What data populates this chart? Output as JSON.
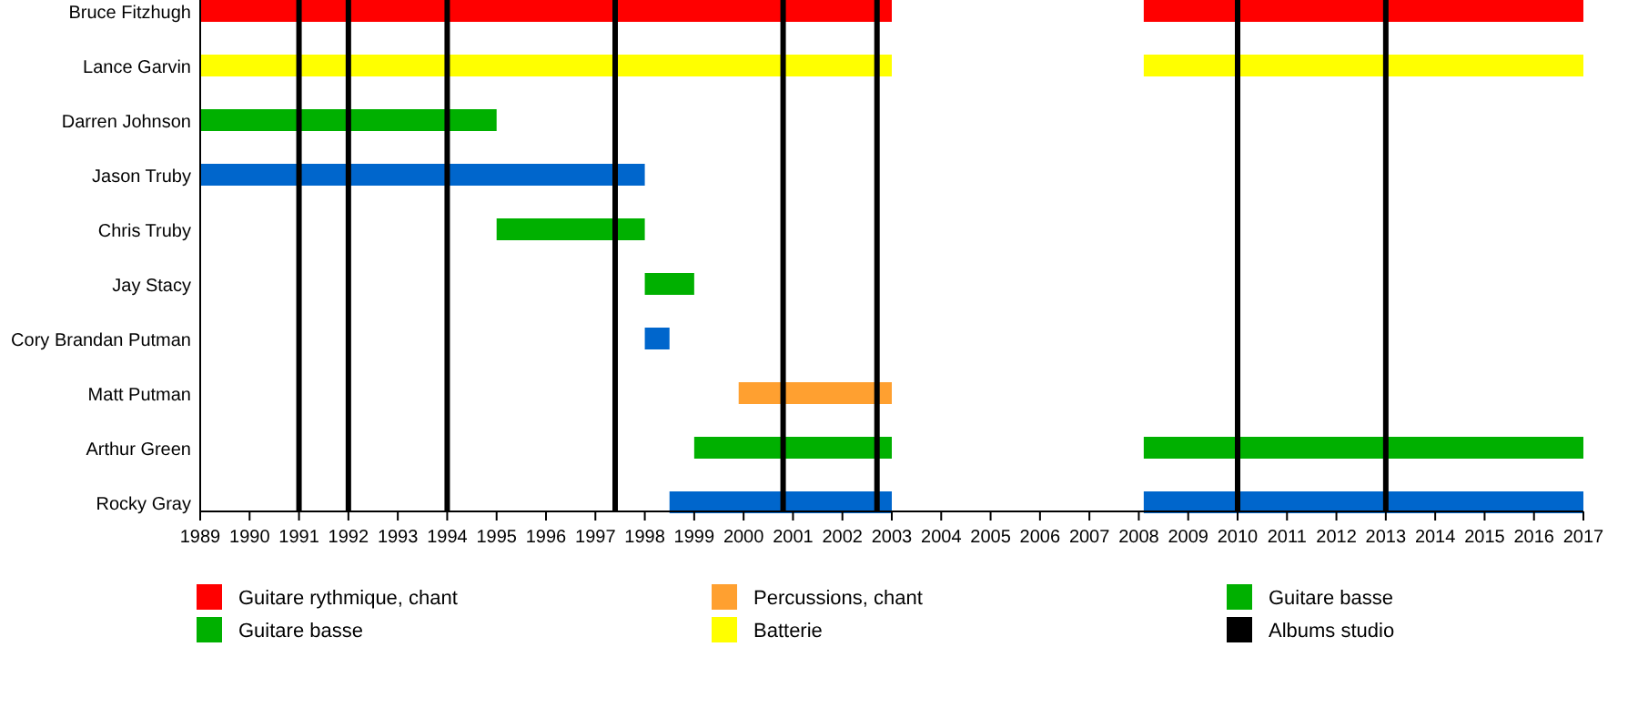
{
  "chart_data": {
    "type": "bar",
    "orientation": "horizontal",
    "categories": [
      "Bruce Fitzhugh",
      "Lance Garvin",
      "Darren Johnson",
      "Jason Truby",
      "Chris Truby",
      "Jay Stacy",
      "Cory Brandan Putman",
      "Matt Putman",
      "Arthur Green",
      "Rocky Gray"
    ],
    "series": [
      {
        "name": "Guitare rythmique, chant",
        "color": "#ff0000",
        "base": [
          1989,
          null,
          null,
          null,
          null,
          null,
          null,
          null,
          null,
          null
        ],
        "values": [
          14,
          null,
          null,
          null,
          null,
          null,
          null,
          null,
          null,
          null
        ]
      },
      {
        "name": "Guitare basse",
        "color": "#00b000",
        "base": [
          null,
          null,
          1989,
          null,
          1995,
          1998,
          null,
          null,
          null,
          null
        ],
        "values": [
          null,
          null,
          6,
          null,
          3,
          1,
          null,
          null,
          null,
          null
        ]
      },
      {
        "name": "Percussions, chant",
        "color": "#ffa030",
        "base": [
          null,
          null,
          null,
          null,
          null,
          null,
          null,
          1999.9,
          null,
          null
        ],
        "values": [
          null,
          null,
          null,
          null,
          null,
          null,
          null,
          3.1,
          null,
          null
        ]
      },
      {
        "name": "Batterie",
        "color": "#ffff00",
        "base": [
          null,
          1989,
          null,
          null,
          null,
          null,
          null,
          null,
          null,
          null
        ],
        "values": [
          null,
          14,
          null,
          null,
          null,
          null,
          null,
          null,
          null,
          null
        ]
      },
      {
        "name": "Guitare basse",
        "color": "#00b000",
        "base": [
          null,
          null,
          null,
          null,
          null,
          null,
          null,
          null,
          1999,
          null
        ],
        "values": [
          null,
          null,
          null,
          null,
          null,
          null,
          null,
          null,
          4,
          null
        ]
      },
      {
        "color": "#0066cc",
        "base": [
          null,
          null,
          null,
          1989,
          null,
          null,
          1998,
          null,
          null,
          1998.5
        ],
        "values": [
          null,
          null,
          null,
          9,
          null,
          null,
          0.5,
          null,
          null,
          4.5
        ]
      },
      {
        "color": "#ff0000",
        "base": [
          2008.1,
          null,
          null,
          null,
          null,
          null,
          null,
          null,
          null,
          null
        ],
        "values": [
          8.9,
          null,
          null,
          null,
          null,
          null,
          null,
          null,
          null,
          null
        ]
      },
      {
        "color": "#ffff00",
        "base": [
          null,
          2008.1,
          null,
          null,
          null,
          null,
          null,
          null,
          null,
          null
        ],
        "values": [
          null,
          8.9,
          null,
          null,
          null,
          null,
          null,
          null,
          null,
          null
        ]
      },
      {
        "color": "#00b000",
        "base": [
          null,
          null,
          null,
          null,
          null,
          null,
          null,
          null,
          2008.1,
          null
        ],
        "values": [
          null,
          null,
          null,
          null,
          null,
          null,
          null,
          null,
          8.9,
          null
        ]
      },
      {
        "color": "#0066cc",
        "base": [
          null,
          null,
          null,
          null,
          null,
          null,
          null,
          null,
          null,
          2008.1
        ],
        "values": [
          null,
          null,
          null,
          null,
          null,
          null,
          null,
          null,
          null,
          8.9
        ]
      }
    ],
    "xlim": [
      1989,
      2017
    ],
    "xticks": [
      1989,
      1990,
      1991,
      1992,
      1993,
      1994,
      1995,
      1996,
      1997,
      1998,
      1999,
      2000,
      2001,
      2002,
      2003,
      2004,
      2005,
      2006,
      2007,
      2008,
      2009,
      2010,
      2011,
      2012,
      2013,
      2014,
      2015,
      2016,
      2017
    ],
    "ref_lines": [
      {
        "axis": "x",
        "value": 1991,
        "color": "#000000",
        "label": "Albums studio"
      },
      {
        "axis": "x",
        "value": 1992,
        "color": "#000000"
      },
      {
        "axis": "x",
        "value": 1994,
        "color": "#000000"
      },
      {
        "axis": "x",
        "value": 1997.4,
        "color": "#000000"
      },
      {
        "axis": "x",
        "value": 2000.8,
        "color": "#000000"
      },
      {
        "axis": "x",
        "value": 2002.7,
        "color": "#000000"
      },
      {
        "axis": "x",
        "value": 2010,
        "color": "#000000"
      },
      {
        "axis": "x",
        "value": 2013,
        "color": "#000000"
      }
    ],
    "legend": "bottom",
    "grid": false
  }
}
